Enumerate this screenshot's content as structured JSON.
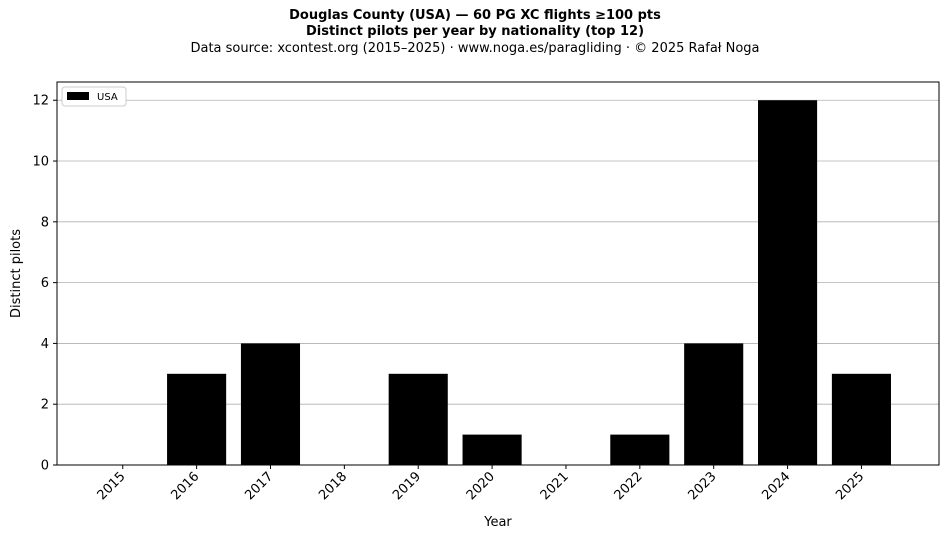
{
  "title_line1": "Douglas County (USA)  —  60 PG XC flights ≥100 pts",
  "title_line2": "Distinct pilots per year by nationality (top 12)",
  "subtitle": "Data source: xcontest.org (2015–2025)  ·  www.noga.es/paragliding  ·  © 2025 Rafał Noga",
  "chart_data": {
    "type": "bar",
    "categories": [
      "2015",
      "2016",
      "2017",
      "2018",
      "2019",
      "2020",
      "2021",
      "2022",
      "2023",
      "2024",
      "2025"
    ],
    "series": [
      {
        "name": "USA",
        "values": [
          0,
          3,
          4,
          0,
          3,
          1,
          0,
          1,
          4,
          12,
          3
        ],
        "color": "#000000"
      }
    ],
    "xlabel": "Year",
    "ylabel": "Distinct pilots",
    "ylim": [
      0,
      12.6
    ],
    "yticks": [
      0,
      2,
      4,
      6,
      8,
      10,
      12
    ],
    "grid": "y",
    "legend_position": "top-left"
  }
}
